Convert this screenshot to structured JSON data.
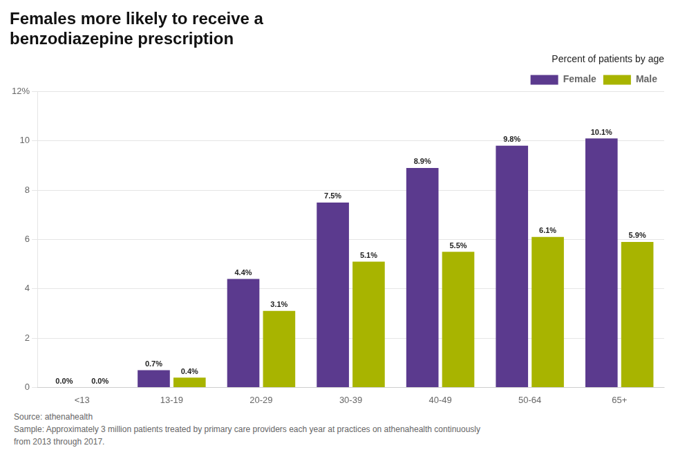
{
  "chart_data": {
    "type": "bar",
    "title": [
      "Females more likely to receive a",
      "benzodiazepine prescription"
    ],
    "subtitle": "Percent of patients by age",
    "categories": [
      "<13",
      "13-19",
      "20-29",
      "30-39",
      "40-49",
      "50-64",
      "65+"
    ],
    "series": [
      {
        "name": "Female",
        "color": "#5b3a8e",
        "values": [
          0.0,
          0.7,
          4.4,
          7.5,
          8.9,
          9.8,
          10.1
        ],
        "value_labels": [
          "0.0%",
          "0.7%",
          "4.4%",
          "7.5%",
          "8.9%",
          "9.8%",
          "10.1%"
        ]
      },
      {
        "name": "Male",
        "color": "#a8b400",
        "values": [
          0.0,
          0.4,
          3.1,
          5.1,
          5.5,
          6.1,
          5.9
        ],
        "value_labels": [
          "0.0%",
          "0.4%",
          "3.1%",
          "5.1%",
          "5.5%",
          "6.1%",
          "5.9%"
        ]
      }
    ],
    "ylim": [
      0,
      12
    ],
    "yticks": [
      0,
      2,
      4,
      6,
      8,
      10,
      {
        "value": 12,
        "label": "12%"
      }
    ],
    "grid": true,
    "legend": "top right",
    "data_labels": true,
    "annotations": [
      "Source: athenahealth\nSample: Approximately 3 million patients treated by primary care providers each year at practices on athenahealth continuously\nfrom 2013 through 2017."
    ]
  }
}
